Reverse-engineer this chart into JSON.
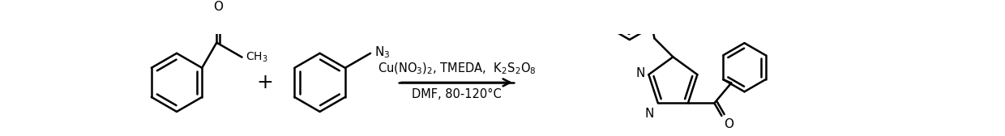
{
  "background_color": "#ffffff",
  "line_color": "#000000",
  "line_width": 1.8,
  "reaction_line_above": "Cu(NO₃)₂， TMEDA， K₂S₂O₈",
  "reaction_line_above2": "Cu(NO₃)₂, TMEDA,  K₂S₂O₈",
  "reaction_line_below": "DMF, 80-120ºC",
  "font_size_reaction": 10.5,
  "font_size_label": 10,
  "font_size_plus": 14
}
